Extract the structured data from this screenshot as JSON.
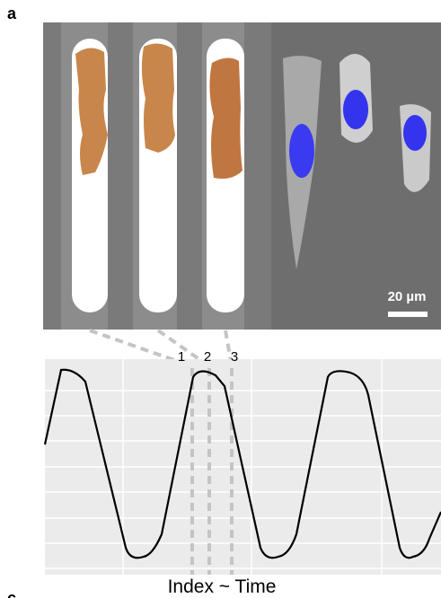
{
  "panel_label": "a",
  "next_panel_label": "c",
  "scale_bar": "20 µm",
  "markers": [
    "1",
    "2",
    "3"
  ],
  "x_axis_label": "Index ~ Time"
}
